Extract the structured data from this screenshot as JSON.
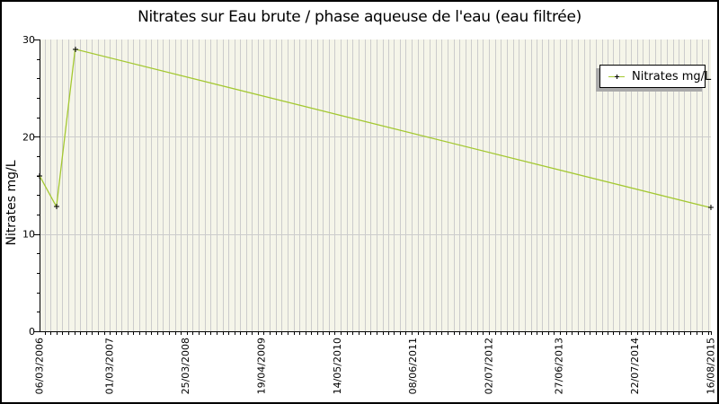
{
  "legend": {
    "label": "Nitrates mg/L"
  },
  "chart_data": {
    "type": "line",
    "title": "Nitrates sur Eau brute / phase aqueuse de l'eau (eau filtrée)",
    "xlabel": "",
    "ylabel": "Nitrates mg/L",
    "x_range": [
      "06/03/2006",
      "16/08/2015"
    ],
    "ylim": [
      0,
      30
    ],
    "y_major_ticks": [
      0,
      10,
      20,
      30
    ],
    "y_minor_tick_step": 2,
    "x_tick_labels": [
      "06/03/2006",
      "01/03/2007",
      "25/03/2008",
      "19/04/2009",
      "14/05/2010",
      "08/06/2011",
      "02/07/2012",
      "27/06/2013",
      "22/07/2014",
      "16/08/2015"
    ],
    "grid": {
      "vertical": "monthly",
      "horizontal": "major-only"
    },
    "legend_position": "top-right",
    "series": [
      {
        "name": "Nitrates mg/L",
        "color": "#a4c832",
        "marker": "plus",
        "marker_color": "#000000",
        "points": [
          {
            "date": "06/03/2006",
            "value": 16
          },
          {
            "date": "01/06/2006",
            "value": 12.8
          },
          {
            "date": "05/09/2006",
            "value": 29
          },
          {
            "date": "16/08/2015",
            "value": 12.7
          }
        ]
      }
    ],
    "colors": {
      "plot_background": "#f5f5e9",
      "grid_line": "#cccccc",
      "axis": "#000000",
      "text": "#000000",
      "page_background": "#ffffff",
      "frame_border": "#000000",
      "legend_shadow": "#aaaaaa"
    }
  }
}
